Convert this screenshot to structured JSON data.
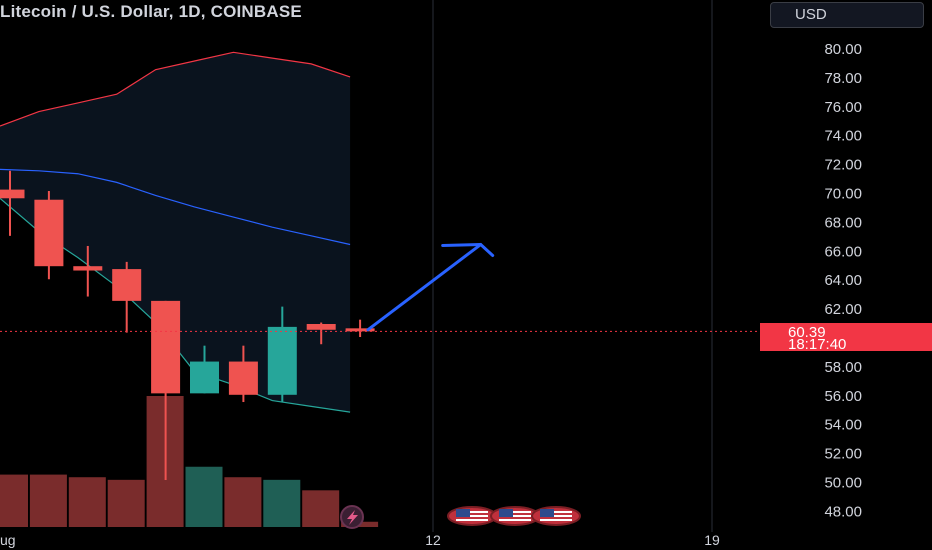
{
  "header": {
    "title": "Litecoin / U.S. Dollar, 1D, COINBASE",
    "currency_button": "USD"
  },
  "price_badge": {
    "price": "60.39",
    "countdown": "18:17:40"
  },
  "colors": {
    "background": "#000000",
    "up": "#26a69a",
    "down": "#ef5350",
    "volume_up": "#1f5f55",
    "volume_down": "#7a2c2c",
    "upper_band": "#f23645",
    "middle_band": "#2962ff",
    "lower_band": "#26a69a",
    "arrow": "#2962ff",
    "badge": "#f23645",
    "axis_text": "#d1d4dc"
  },
  "event_icons": [
    "lightning-event-icon",
    "us-flag-icon",
    "us-flag-icon",
    "us-flag-icon"
  ],
  "chart_data": {
    "type": "candlestick",
    "title": "Litecoin / U.S. Dollar, 1D, COINBASE",
    "ylim": [
      47,
      82
    ],
    "y_ticks": [
      "48.00",
      "50.00",
      "52.00",
      "54.00",
      "56.00",
      "58.00",
      "60.00",
      "62.00",
      "64.00",
      "66.00",
      "68.00",
      "70.00",
      "72.00",
      "74.00",
      "76.00",
      "78.00",
      "80.00"
    ],
    "x_ticks": [
      "ug",
      "12",
      "19"
    ],
    "last_price": 60.39,
    "candles": [
      {
        "open": 70.2,
        "high": 71.5,
        "low": 67.0,
        "close": 69.6,
        "dir": "down"
      },
      {
        "open": 69.5,
        "high": 70.1,
        "low": 64.0,
        "close": 64.9,
        "dir": "down"
      },
      {
        "open": 64.9,
        "high": 66.3,
        "low": 62.8,
        "close": 64.6,
        "dir": "down"
      },
      {
        "open": 64.7,
        "high": 65.2,
        "low": 60.3,
        "close": 62.5,
        "dir": "down"
      },
      {
        "open": 62.5,
        "high": 62.5,
        "low": 50.1,
        "close": 56.1,
        "dir": "down"
      },
      {
        "open": 56.1,
        "high": 59.4,
        "low": 56.1,
        "close": 58.3,
        "dir": "up"
      },
      {
        "open": 58.3,
        "high": 59.4,
        "low": 55.5,
        "close": 56.0,
        "dir": "down"
      },
      {
        "open": 56.0,
        "high": 62.1,
        "low": 55.5,
        "close": 60.7,
        "dir": "up"
      },
      {
        "open": 60.9,
        "high": 61.0,
        "low": 59.5,
        "close": 60.5,
        "dir": "down"
      },
      {
        "open": 60.6,
        "high": 61.2,
        "low": 60.0,
        "close": 60.39,
        "dir": "down"
      }
    ],
    "volume": [
      {
        "value": 0.4,
        "dir": "down"
      },
      {
        "value": 0.4,
        "dir": "down"
      },
      {
        "value": 0.38,
        "dir": "down"
      },
      {
        "value": 0.36,
        "dir": "down"
      },
      {
        "value": 1.0,
        "dir": "down"
      },
      {
        "value": 0.46,
        "dir": "up"
      },
      {
        "value": 0.38,
        "dir": "down"
      },
      {
        "value": 0.36,
        "dir": "up"
      },
      {
        "value": 0.28,
        "dir": "down"
      },
      {
        "value": 0.04,
        "dir": "down"
      }
    ],
    "bollinger_bands": {
      "upper": [
        74.6,
        75.6,
        76.2,
        76.8,
        78.5,
        79.1,
        79.7,
        79.3,
        78.9,
        78.0
      ],
      "middle": [
        71.6,
        71.5,
        71.3,
        70.7,
        69.8,
        69.0,
        68.3,
        67.6,
        67.0,
        66.4
      ],
      "lower": [
        69.6,
        67.3,
        65.5,
        63.5,
        61.0,
        57.6,
        56.7,
        55.6,
        55.2,
        54.8
      ]
    },
    "projection_arrow": {
      "from": {
        "bar": 9.2,
        "price": 60.5
      },
      "to": {
        "bar": 12.1,
        "price": 66.4
      }
    }
  }
}
